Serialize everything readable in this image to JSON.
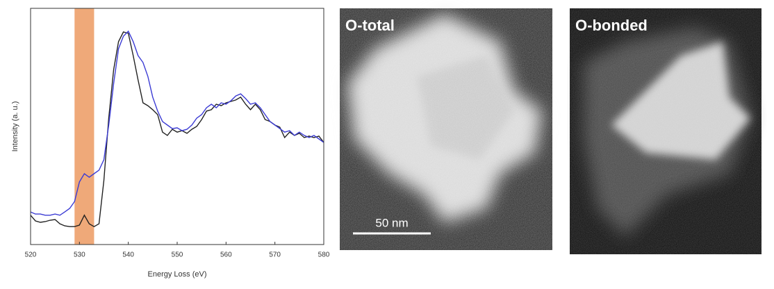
{
  "chart_data": {
    "type": "line",
    "x_label": "Energy Loss (eV)",
    "y_label": "Intensity (a. u.)",
    "x": [
      520,
      521,
      522,
      523,
      524,
      525,
      526,
      527,
      528,
      529,
      530,
      531,
      532,
      533,
      534,
      535,
      536,
      537,
      538,
      539,
      540,
      541,
      542,
      543,
      544,
      545,
      546,
      547,
      548,
      549,
      550,
      551,
      552,
      553,
      554,
      555,
      556,
      557,
      558,
      559,
      560,
      561,
      562,
      563,
      564,
      565,
      566,
      567,
      568,
      569,
      570,
      571,
      572,
      573,
      574,
      575,
      576,
      577,
      578,
      579,
      580
    ],
    "series": [
      {
        "color": "#222222",
        "values": [
          0.124,
          0.1,
          0.094,
          0.097,
          0.103,
          0.106,
          0.088,
          0.079,
          0.076,
          0.076,
          0.082,
          0.124,
          0.088,
          0.076,
          0.088,
          0.271,
          0.535,
          0.741,
          0.859,
          0.9,
          0.894,
          0.8,
          0.697,
          0.6,
          0.588,
          0.571,
          0.55,
          0.476,
          0.462,
          0.488,
          0.476,
          0.482,
          0.471,
          0.488,
          0.5,
          0.529,
          0.565,
          0.571,
          0.594,
          0.588,
          0.6,
          0.606,
          0.612,
          0.624,
          0.594,
          0.571,
          0.594,
          0.571,
          0.529,
          0.521,
          0.506,
          0.497,
          0.453,
          0.476,
          0.462,
          0.471,
          0.453,
          0.459,
          0.453,
          0.459,
          0.432
        ]
      },
      {
        "color": "#3b3bd4",
        "values": [
          0.138,
          0.129,
          0.129,
          0.124,
          0.124,
          0.129,
          0.124,
          0.138,
          0.153,
          0.182,
          0.265,
          0.3,
          0.285,
          0.3,
          0.315,
          0.359,
          0.506,
          0.682,
          0.829,
          0.882,
          0.903,
          0.859,
          0.8,
          0.771,
          0.712,
          0.624,
          0.565,
          0.521,
          0.506,
          0.491,
          0.494,
          0.482,
          0.488,
          0.506,
          0.535,
          0.55,
          0.579,
          0.594,
          0.579,
          0.6,
          0.594,
          0.609,
          0.629,
          0.638,
          0.618,
          0.594,
          0.6,
          0.579,
          0.55,
          0.521,
          0.506,
          0.491,
          0.476,
          0.482,
          0.462,
          0.476,
          0.462,
          0.453,
          0.462,
          0.447,
          0.432
        ]
      }
    ],
    "xlim": [
      520,
      580
    ],
    "xticks": [
      520,
      530,
      540,
      550,
      560,
      570,
      580
    ],
    "ylim": [
      0,
      1
    ],
    "grid": false,
    "highlight": {
      "xmin": 529,
      "xmax": 533,
      "color": "#ec9a62"
    }
  },
  "images": [
    {
      "label": "O-total",
      "scale_bar": "50 nm"
    },
    {
      "label": "O-bonded"
    }
  ]
}
